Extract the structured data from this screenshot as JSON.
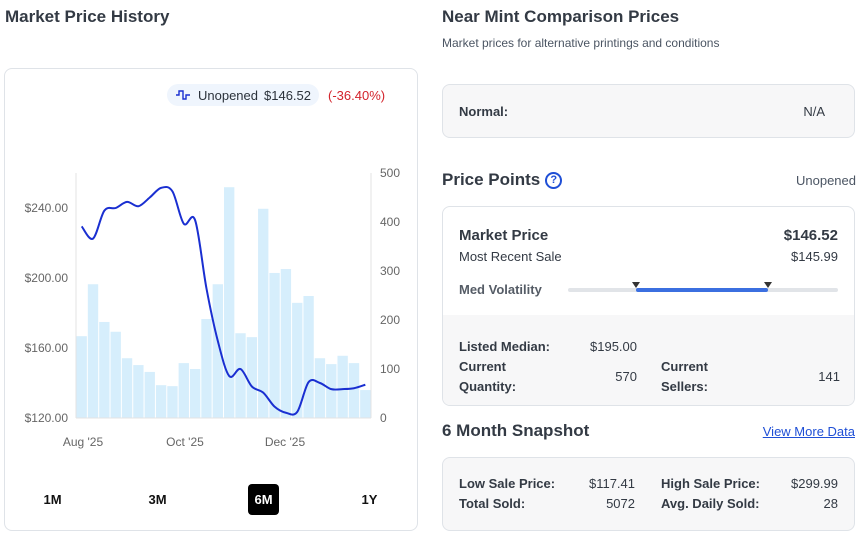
{
  "market_history": {
    "title": "Market Price History",
    "legend": {
      "icon": "price-line-icon",
      "condition": "Unopened",
      "price": "$146.52",
      "change": "(-36.40%)",
      "line_color": "#1a2fd1",
      "change_color": "#d3232b"
    },
    "ranges": [
      {
        "label": "1M",
        "active": false
      },
      {
        "label": "3M",
        "active": false
      },
      {
        "label": "6M",
        "active": true
      },
      {
        "label": "1Y",
        "active": false
      }
    ]
  },
  "chart_data": {
    "type": "bar",
    "title": "",
    "xlabel": "",
    "ylabel": "",
    "x_tick_labels": [
      "Aug '25",
      "Oct '25",
      "Dec '25"
    ],
    "y_left": {
      "ticks": [
        "$120.00",
        "$160.00",
        "$200.00",
        "$240.00"
      ],
      "range": [
        120,
        252
      ]
    },
    "y_right": {
      "ticks": [
        "0",
        "100",
        "200",
        "300",
        "400",
        "500"
      ],
      "range": [
        0,
        500
      ]
    },
    "grid": false,
    "legend_position": "top-right",
    "series": [
      {
        "name": "Volume",
        "type": "bar",
        "axis": "right",
        "color": "#d6eefc",
        "values": [
          167,
          273,
          196,
          176,
          122,
          108,
          94,
          67,
          65,
          112,
          100,
          202,
          273,
          471,
          173,
          165,
          427,
          296,
          304,
          235,
          249,
          122,
          110,
          127,
          112,
          57
        ]
      },
      {
        "name": "Unopened",
        "type": "line",
        "axis": "left",
        "color": "#1a2fd1",
        "values": [
          229.5,
          222.5,
          238.5,
          240,
          243.5,
          241,
          246,
          251.5,
          249.5,
          231,
          233,
          194,
          164,
          144,
          148,
          138,
          134.5,
          126.5,
          123,
          123.5,
          140.5,
          140,
          136.5,
          136.5,
          137,
          139
        ]
      }
    ]
  },
  "comparison": {
    "title": "Near Mint Comparison Prices",
    "subtitle": "Market prices for alternative printings and conditions",
    "rows": [
      {
        "label": "Normal:",
        "value": "N/A"
      }
    ]
  },
  "price_points": {
    "title": "Price Points",
    "help_icon": "help-circle-icon",
    "condition": "Unopened",
    "market_price_label": "Market Price",
    "market_price": "$146.52",
    "recent_sale_label": "Most Recent Sale",
    "recent_sale": "$145.99",
    "volatility_label": "Med Volatility",
    "volatility_range": {
      "low": 0.25,
      "high": 0.74
    },
    "listed_median_label": "Listed Median:",
    "listed_median": "$195.00",
    "current_quantity_label_1": "Current",
    "current_quantity_label_2": "Quantity:",
    "current_quantity": "570",
    "current_sellers_label_1": "Current",
    "current_sellers_label_2": "Sellers:",
    "current_sellers": "141"
  },
  "snapshot": {
    "title": "6 Month Snapshot",
    "link": "View More Data",
    "low_label": "Low Sale Price:",
    "low": "$117.41",
    "high_label": "High Sale Price:",
    "high": "$299.99",
    "total_label": "Total Sold:",
    "total": "5072",
    "avg_label": "Avg. Daily Sold:",
    "avg": "28"
  }
}
